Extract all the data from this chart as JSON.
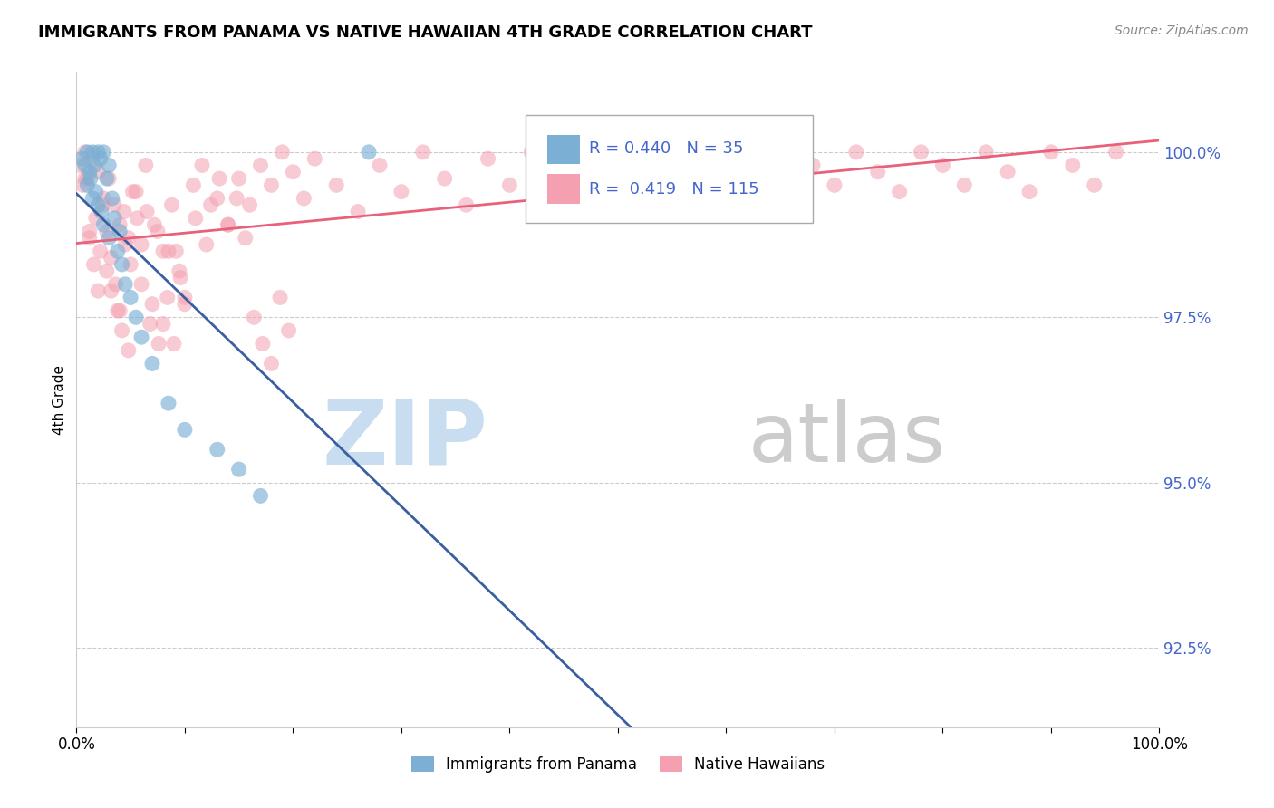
{
  "title": "IMMIGRANTS FROM PANAMA VS NATIVE HAWAIIAN 4TH GRADE CORRELATION CHART",
  "source": "Source: ZipAtlas.com",
  "ylabel": "4th Grade",
  "yticks": [
    92.5,
    95.0,
    97.5,
    100.0
  ],
  "xlim": [
    0.0,
    1.0
  ],
  "ylim": [
    91.3,
    101.2
  ],
  "legend": {
    "blue_r": 0.44,
    "blue_n": 35,
    "pink_r": 0.419,
    "pink_n": 115
  },
  "blue_color": "#7BAFD4",
  "pink_color": "#F4A0B0",
  "blue_line_color": "#3A5FA0",
  "pink_line_color": "#E8607A",
  "watermark_zip_color": "#C8DDEF",
  "watermark_atlas_color": "#CCCCCC",
  "tick_label_color": "#4466CC",
  "blue_scatter_x": [
    0.005,
    0.008,
    0.01,
    0.01,
    0.012,
    0.013,
    0.015,
    0.015,
    0.017,
    0.018,
    0.02,
    0.02,
    0.022,
    0.023,
    0.025,
    0.025,
    0.028,
    0.03,
    0.03,
    0.033,
    0.035,
    0.038,
    0.04,
    0.042,
    0.045,
    0.05,
    0.055,
    0.06,
    0.07,
    0.085,
    0.1,
    0.13,
    0.15,
    0.17,
    0.27
  ],
  "blue_scatter_y": [
    99.9,
    99.8,
    100.0,
    99.5,
    99.7,
    99.6,
    100.0,
    99.3,
    99.8,
    99.4,
    100.0,
    99.2,
    99.9,
    99.1,
    100.0,
    98.9,
    99.6,
    99.8,
    98.7,
    99.3,
    99.0,
    98.5,
    98.8,
    98.3,
    98.0,
    97.8,
    97.5,
    97.2,
    96.8,
    96.2,
    95.8,
    95.5,
    95.2,
    94.8,
    100.0
  ],
  "pink_scatter_x": [
    0.003,
    0.006,
    0.008,
    0.01,
    0.012,
    0.015,
    0.018,
    0.02,
    0.022,
    0.025,
    0.028,
    0.03,
    0.032,
    0.035,
    0.038,
    0.04,
    0.042,
    0.045,
    0.048,
    0.05,
    0.055,
    0.06,
    0.065,
    0.07,
    0.075,
    0.08,
    0.085,
    0.09,
    0.095,
    0.1,
    0.11,
    0.12,
    0.13,
    0.14,
    0.15,
    0.16,
    0.17,
    0.18,
    0.19,
    0.2,
    0.21,
    0.22,
    0.24,
    0.26,
    0.28,
    0.3,
    0.32,
    0.34,
    0.36,
    0.38,
    0.4,
    0.42,
    0.44,
    0.46,
    0.48,
    0.5,
    0.52,
    0.54,
    0.56,
    0.58,
    0.6,
    0.62,
    0.64,
    0.66,
    0.68,
    0.7,
    0.72,
    0.74,
    0.76,
    0.78,
    0.8,
    0.82,
    0.84,
    0.86,
    0.88,
    0.9,
    0.92,
    0.94,
    0.96,
    0.008,
    0.012,
    0.016,
    0.02,
    0.024,
    0.028,
    0.032,
    0.036,
    0.04,
    0.044,
    0.048,
    0.052,
    0.056,
    0.06,
    0.064,
    0.068,
    0.072,
    0.076,
    0.08,
    0.084,
    0.088,
    0.092,
    0.096,
    0.1,
    0.108,
    0.116,
    0.124,
    0.132,
    0.14,
    0.148,
    0.156,
    0.164,
    0.172,
    0.18,
    0.188,
    0.196
  ],
  "pink_scatter_y": [
    99.8,
    99.5,
    100.0,
    99.6,
    98.8,
    99.9,
    99.0,
    99.7,
    98.5,
    99.3,
    98.2,
    99.6,
    97.9,
    99.2,
    97.6,
    98.9,
    97.3,
    98.6,
    97.0,
    98.3,
    99.4,
    98.0,
    99.1,
    97.7,
    98.8,
    97.4,
    98.5,
    97.1,
    98.2,
    97.8,
    99.0,
    98.6,
    99.3,
    98.9,
    99.6,
    99.2,
    99.8,
    99.5,
    100.0,
    99.7,
    99.3,
    99.9,
    99.5,
    99.1,
    99.8,
    99.4,
    100.0,
    99.6,
    99.2,
    99.9,
    99.5,
    100.0,
    99.7,
    99.4,
    100.0,
    99.8,
    99.5,
    100.0,
    99.7,
    99.4,
    100.0,
    99.6,
    99.3,
    100.0,
    99.8,
    99.5,
    100.0,
    99.7,
    99.4,
    100.0,
    99.8,
    99.5,
    100.0,
    99.7,
    99.4,
    100.0,
    99.8,
    99.5,
    100.0,
    99.6,
    98.7,
    98.3,
    97.9,
    99.2,
    98.8,
    98.4,
    98.0,
    97.6,
    99.1,
    98.7,
    99.4,
    99.0,
    98.6,
    99.8,
    97.4,
    98.9,
    97.1,
    98.5,
    97.8,
    99.2,
    98.5,
    98.1,
    97.7,
    99.5,
    99.8,
    99.2,
    99.6,
    98.9,
    99.3,
    98.7,
    97.5,
    97.1,
    96.8,
    97.8,
    97.3
  ]
}
